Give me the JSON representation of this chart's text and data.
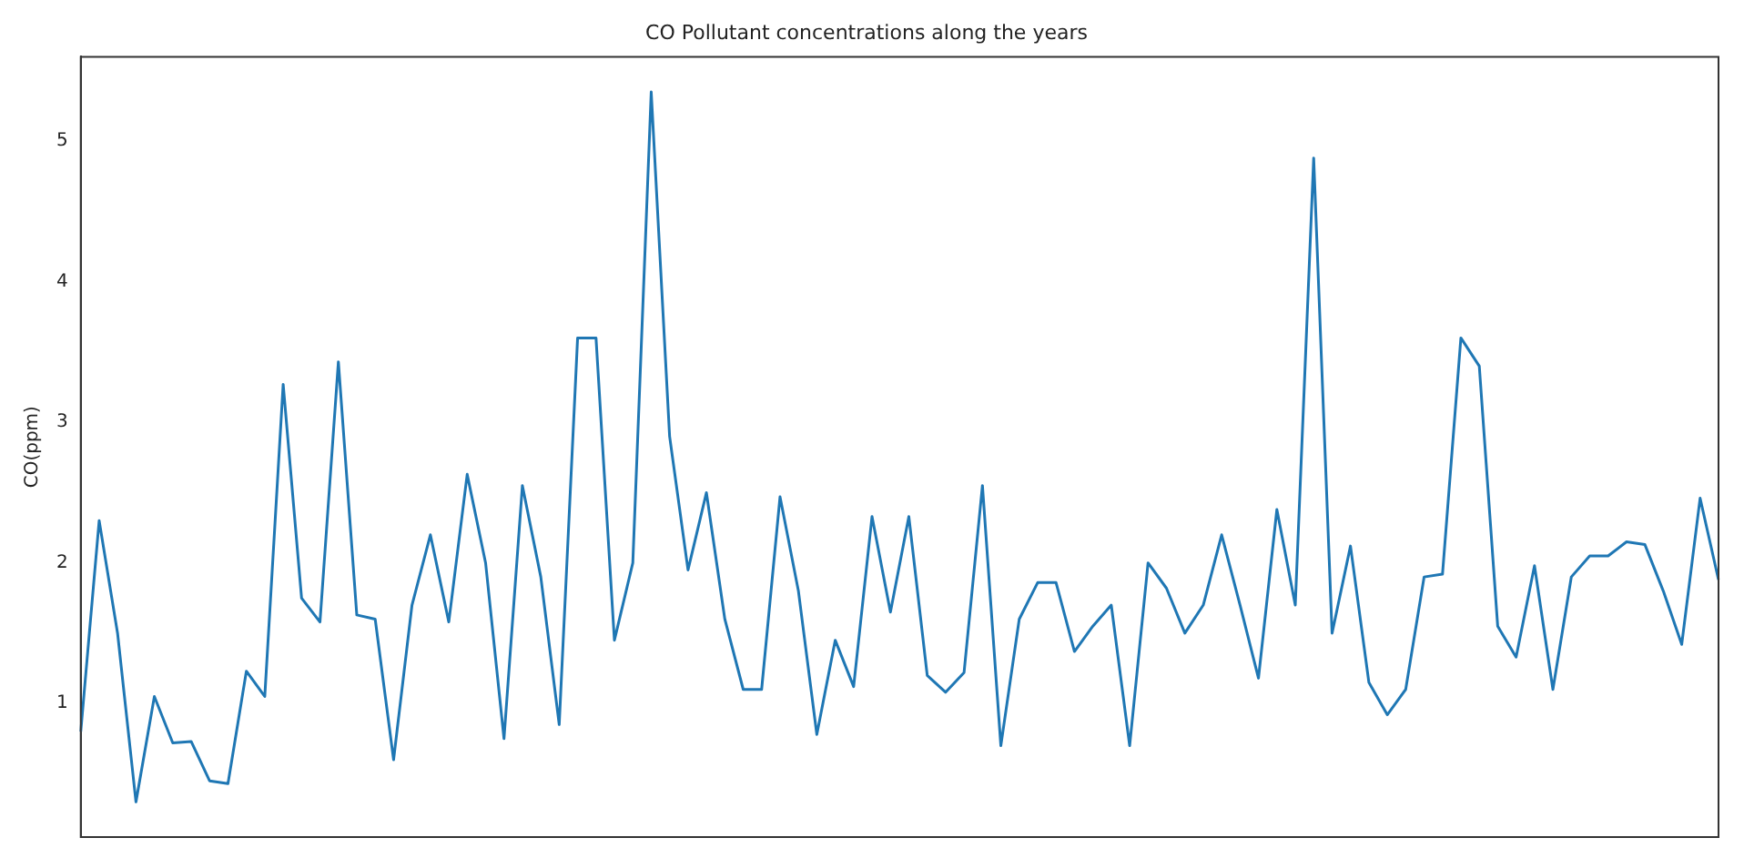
{
  "chart_data": {
    "type": "line",
    "title": "CO Pollutant concentrations along the years",
    "ylabel": "CO(ppm)",
    "categories": [
      null,
      null,
      null,
      null,
      null,
      null,
      null,
      null,
      null,
      null,
      null,
      null,
      null,
      null,
      null,
      null,
      null,
      null,
      null,
      null,
      null,
      null,
      null,
      null,
      null,
      null,
      null,
      null,
      null,
      null,
      null,
      null,
      null,
      null,
      null,
      null,
      null,
      null,
      null,
      null,
      null,
      null,
      null,
      null,
      null,
      null,
      null,
      null,
      null,
      null,
      null,
      null,
      null,
      null,
      null,
      null,
      null,
      null,
      null,
      null,
      null,
      null,
      null,
      null,
      null,
      null,
      null,
      null,
      null,
      null,
      null,
      null,
      null,
      null,
      null,
      null,
      null,
      null,
      null,
      null,
      null,
      null,
      null,
      null,
      null,
      null,
      null,
      null,
      null,
      null
    ],
    "series": [
      {
        "color": "#1f77b4",
        "values": [
          0.8,
          2.3,
          1.5,
          0.3,
          1.05,
          0.72,
          0.73,
          0.45,
          0.43,
          1.23,
          1.05,
          3.27,
          1.75,
          1.58,
          3.43,
          1.63,
          1.6,
          0.6,
          1.7,
          2.2,
          1.58,
          2.63,
          2.0,
          0.75,
          2.55,
          1.9,
          0.85,
          3.6,
          3.6,
          1.45,
          2.0,
          5.35,
          2.9,
          1.95,
          2.5,
          1.6,
          1.1,
          1.1,
          2.47,
          1.8,
          0.78,
          1.45,
          1.12,
          2.33,
          1.65,
          2.33,
          1.2,
          1.08,
          1.22,
          2.55,
          0.7,
          1.6,
          1.86,
          1.86,
          1.37,
          1.55,
          1.7,
          0.7,
          2.0,
          1.82,
          1.5,
          1.7,
          2.2,
          1.7,
          1.18,
          2.38,
          1.7,
          4.88,
          1.5,
          2.12,
          1.15,
          0.92,
          1.1,
          1.9,
          1.92,
          3.6,
          3.4,
          1.55,
          1.33,
          1.98,
          1.1,
          1.9,
          2.05,
          2.05,
          2.15,
          2.13,
          1.8,
          1.42,
          2.46,
          1.88
        ]
      }
    ],
    "ylim": [
      0.05,
      5.6
    ],
    "yticks": [
      1,
      2,
      3,
      4,
      5
    ],
    "grid": false,
    "legend": false,
    "tick_labels": "y",
    "marker": "none",
    "line_style": "solid"
  }
}
